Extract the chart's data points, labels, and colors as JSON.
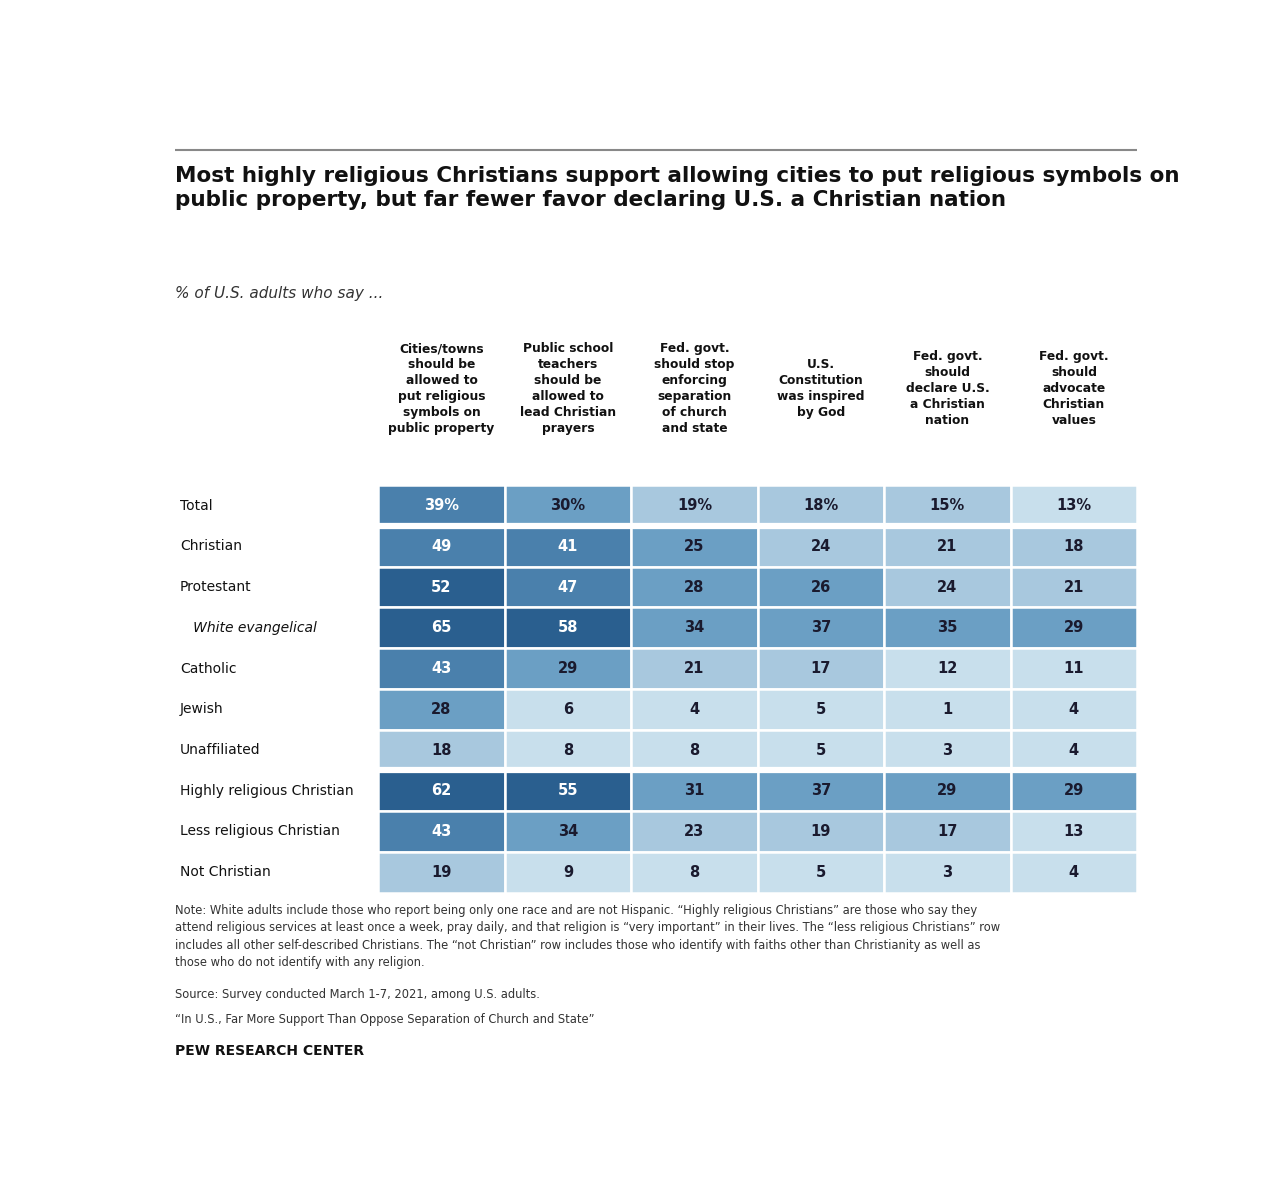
{
  "title": "Most highly religious Christians support allowing cities to put religious symbols on\npublic property, but far fewer favor declaring U.S. a Christian nation",
  "subtitle": "% of U.S. adults who say ...",
  "col_headers": [
    "Cities/towns\nshould be\nallowed to\nput religious\nsymbols on\npublic property",
    "Public school\nteachers\nshould be\nallowed to\nlead Christian\nprayers",
    "Fed. govt.\nshould stop\nenforcing\nseparation\nof church\nand state",
    "U.S.\nConstitution\nwas inspired\nby God",
    "Fed. govt.\nshould\ndeclare U.S.\na Christian\nnation",
    "Fed. govt.\nshould\nadvocate\nChristian\nvalues"
  ],
  "row_labels": [
    "Total",
    "Christian",
    "Protestant",
    "   White evangelical",
    "Catholic",
    "Jewish",
    "Unaffiliated",
    "Highly religious Christian",
    "Less religious Christian",
    "Not Christian"
  ],
  "row_italic": [
    false,
    false,
    false,
    true,
    false,
    false,
    false,
    false,
    false,
    false
  ],
  "values": [
    [
      39,
      30,
      19,
      18,
      15,
      13
    ],
    [
      49,
      41,
      25,
      24,
      21,
      18
    ],
    [
      52,
      47,
      28,
      26,
      24,
      21
    ],
    [
      65,
      58,
      34,
      37,
      35,
      29
    ],
    [
      43,
      29,
      21,
      17,
      12,
      11
    ],
    [
      28,
      6,
      4,
      5,
      1,
      4
    ],
    [
      18,
      8,
      8,
      5,
      3,
      4
    ],
    [
      62,
      55,
      31,
      37,
      29,
      29
    ],
    [
      43,
      34,
      23,
      19,
      17,
      13
    ],
    [
      19,
      9,
      8,
      5,
      3,
      4
    ]
  ],
  "percent_row": [
    true,
    false,
    false,
    false,
    false,
    false,
    false,
    false,
    false,
    false
  ],
  "note": "Note: White adults include those who report being only one race and are not Hispanic. “Highly religious Christians” are those who say they\nattend religious services at least once a week, pray daily, and that religion is “very important” in their lives. The “less religious Christians” row\nincludes all other self-described Christians. The “not Christian” row includes those who identify with faiths other than Christianity as well as\nthose who do not identify with any religion.",
  "source": "Source: Survey conducted March 1-7, 2021, among U.S. adults.",
  "quote": "“In U.S., Far More Support Than Oppose Separation of Church and State”",
  "branding": "PEW RESEARCH CENTER",
  "bg_color": "#ffffff",
  "color_dark": "#2a5f8f",
  "color_mid_dark": "#4a80ac",
  "color_mid": "#6b9fc4",
  "color_light": "#a8c8de",
  "color_very_light": "#c8dfec"
}
